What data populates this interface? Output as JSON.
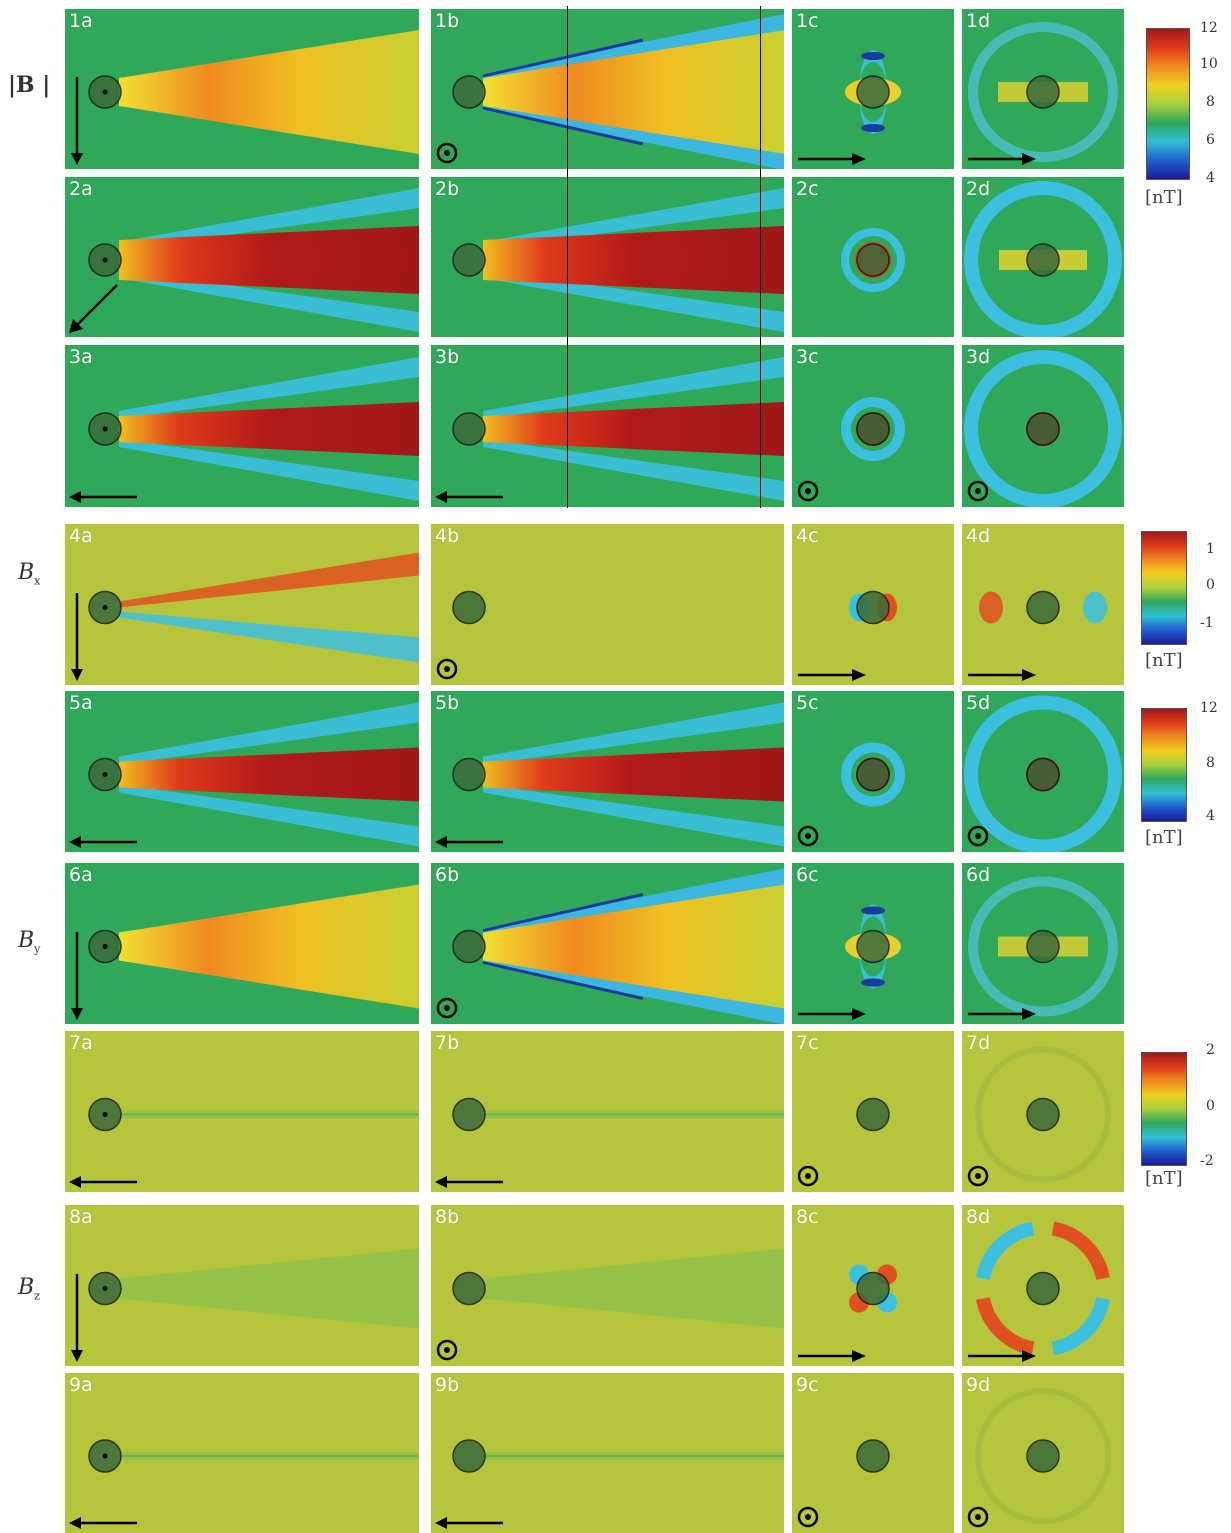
{
  "row_labels": {
    "B_mag": "|B |",
    "Bx_main": "B",
    "Bx_sub": "x",
    "By_main": "B",
    "By_sub": "y",
    "Bz_main": "B",
    "Bz_sub": "z"
  },
  "panel_labels": {
    "p1a": "1a",
    "p1b": "1b",
    "p1c": "1c",
    "p1d": "1d",
    "p2a": "2a",
    "p2b": "2b",
    "p2c": "2c",
    "p2d": "2d",
    "p3a": "3a",
    "p3b": "3b",
    "p3c": "3c",
    "p3d": "3d",
    "p4a": "4a",
    "p4b": "4b",
    "p4c": "4c",
    "p4d": "4d",
    "p5a": "5a",
    "p5b": "5b",
    "p5c": "5c",
    "p5d": "5d",
    "p6a": "6a",
    "p6b": "6b",
    "p6c": "6c",
    "p6d": "6d",
    "p7a": "7a",
    "p7b": "7b",
    "p7c": "7c",
    "p7d": "7d",
    "p8a": "8a",
    "p8b": "8b",
    "p8c": "8c",
    "p8d": "8d",
    "p9a": "9a",
    "p9b": "9b",
    "p9c": "9c",
    "p9d": "9d"
  },
  "colorbars": {
    "cb1": {
      "ticks": [
        "12",
        "10",
        "8",
        "6",
        "4"
      ],
      "unit": "[nT]"
    },
    "cb2": {
      "ticks": [
        "1",
        "0",
        "-1"
      ],
      "unit": "[nT]"
    },
    "cb3": {
      "ticks": [
        "12",
        "8",
        "4"
      ],
      "unit": "[nT]"
    },
    "cb4": {
      "ticks": [
        "2",
        "0",
        "-2"
      ],
      "unit": "[nT]"
    }
  },
  "colors": {
    "background_field": "#2fa85a",
    "noise_field": "#b8c83a",
    "wake_high": "#a01818",
    "wake_mid": "#f0c020",
    "cavity_blue": "#3cc0e0"
  }
}
